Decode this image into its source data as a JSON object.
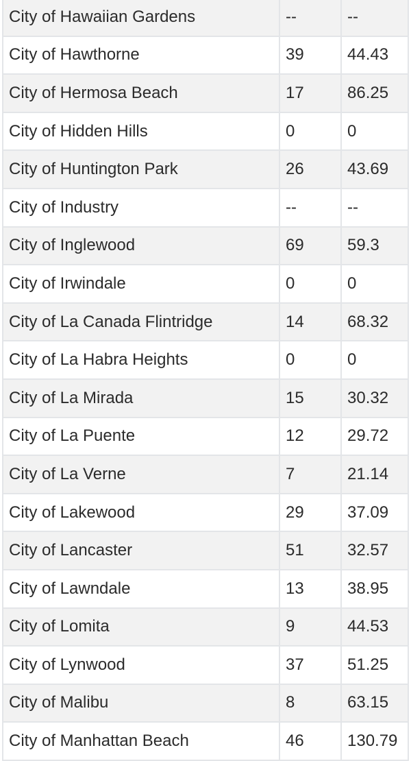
{
  "rows": [
    {
      "city": "City of Hawaiian Gardens",
      "count": "--",
      "rate": "--"
    },
    {
      "city": "City of Hawthorne",
      "count": "39",
      "rate": "44.43"
    },
    {
      "city": "City of Hermosa Beach",
      "count": "17",
      "rate": "86.25"
    },
    {
      "city": "City of Hidden Hills",
      "count": "0",
      "rate": "0"
    },
    {
      "city": "City of Huntington Park",
      "count": "26",
      "rate": "43.69"
    },
    {
      "city": "City of Industry",
      "count": "--",
      "rate": "--"
    },
    {
      "city": "City of Inglewood",
      "count": "69",
      "rate": "59.3"
    },
    {
      "city": "City of Irwindale",
      "count": "0",
      "rate": "0"
    },
    {
      "city": "City of La Canada Flintridge",
      "count": "14",
      "rate": "68.32"
    },
    {
      "city": "City of La Habra Heights",
      "count": "0",
      "rate": "0"
    },
    {
      "city": "City of La Mirada",
      "count": "15",
      "rate": "30.32"
    },
    {
      "city": "City of La Puente",
      "count": "12",
      "rate": "29.72"
    },
    {
      "city": "City of La Verne",
      "count": "7",
      "rate": "21.14"
    },
    {
      "city": "City of Lakewood",
      "count": "29",
      "rate": "37.09"
    },
    {
      "city": "City of Lancaster",
      "count": "51",
      "rate": "32.57"
    },
    {
      "city": "City of Lawndale",
      "count": "13",
      "rate": "38.95"
    },
    {
      "city": "City of Lomita",
      "count": "9",
      "rate": "44.53"
    },
    {
      "city": "City of Lynwood",
      "count": "37",
      "rate": "51.25"
    },
    {
      "city": "City of Malibu",
      "count": "8",
      "rate": "63.15"
    },
    {
      "city": "City of Manhattan Beach",
      "count": "46",
      "rate": "130.79"
    }
  ]
}
